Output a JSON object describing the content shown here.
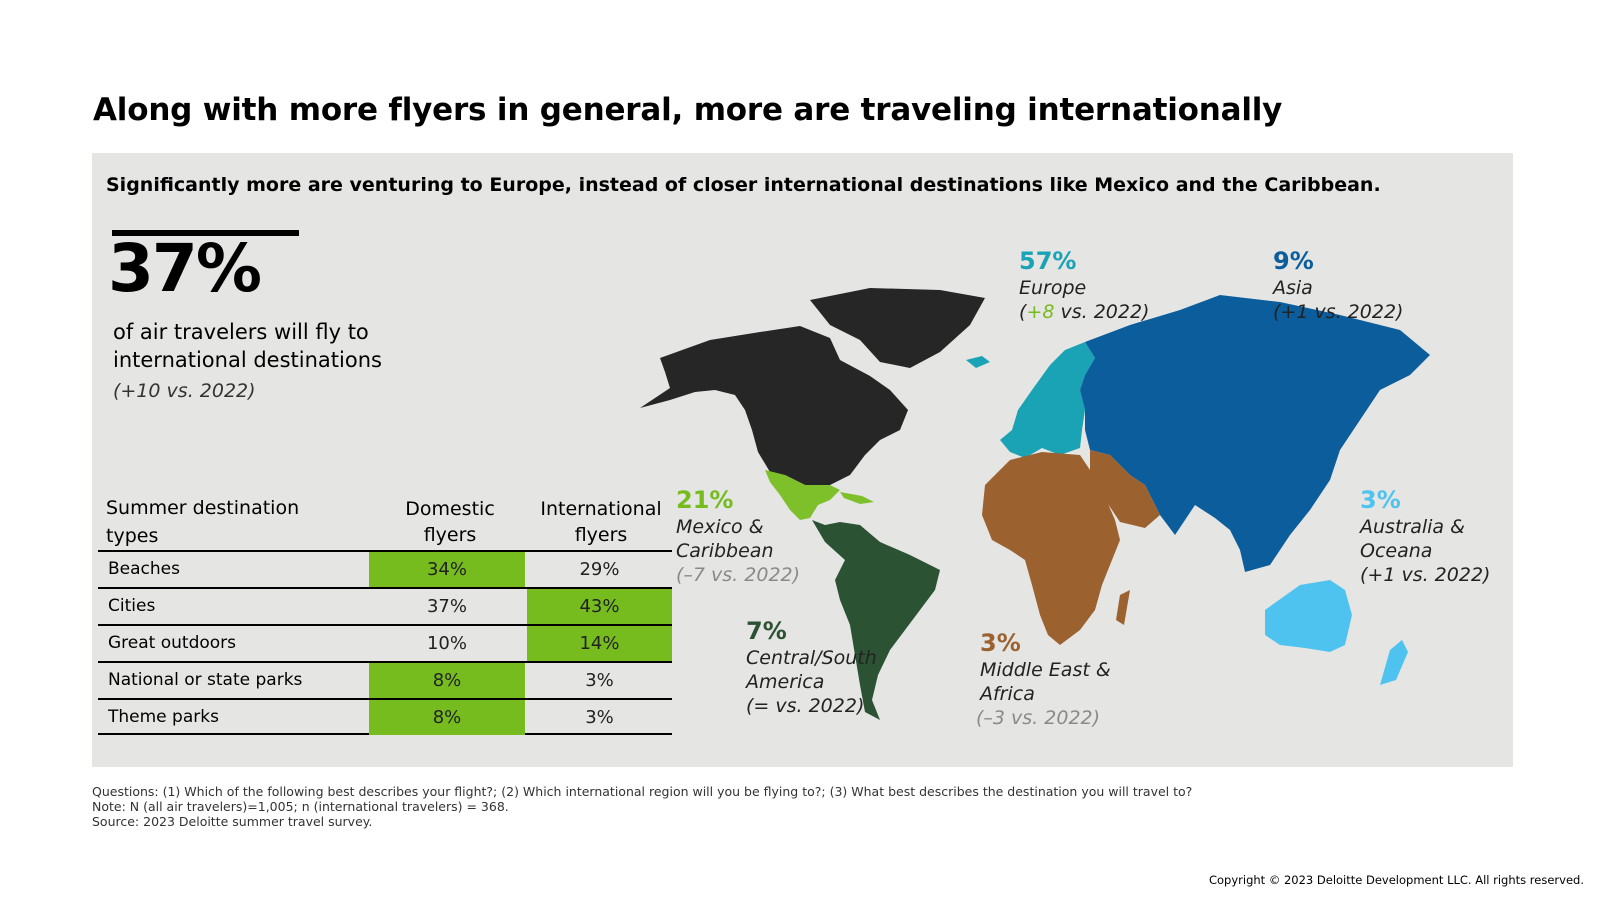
{
  "title": "Along with more flyers in general, more are traveling internationally",
  "subtitle": "Significantly more are venturing to Europe, instead of closer international destinations like Mexico and the Caribbean.",
  "headline_stat": {
    "value": "37%",
    "description": "of air travelers will fly to international destinations",
    "delta": "(+10 vs. 2022)"
  },
  "table": {
    "header_col1": "Summer destination types",
    "header_col2": "Domestic flyers",
    "header_col3": "International flyers",
    "rows": [
      {
        "label": "Beaches",
        "domestic": "34%",
        "international": "29%",
        "highlight": "domestic"
      },
      {
        "label": "Cities",
        "domestic": "37%",
        "international": "43%",
        "highlight": "international"
      },
      {
        "label": "Great outdoors",
        "domestic": "10%",
        "international": "14%",
        "highlight": "international"
      },
      {
        "label": "National or state parks",
        "domestic": "8%",
        "international": "3%",
        "highlight": "domestic"
      },
      {
        "label": "Theme parks",
        "domestic": "8%",
        "international": "3%",
        "highlight": "domestic"
      }
    ]
  },
  "regions": {
    "europe": {
      "pct": "57%",
      "name": "Europe",
      "delta_open": "(",
      "delta_num": "+8",
      "delta_rest": " vs. 2022)",
      "color": "#1aa3b5"
    },
    "asia": {
      "pct": "9%",
      "name": "Asia",
      "delta": "(+1 vs. 2022)",
      "color": "#0b5d9c"
    },
    "mexico": {
      "pct": "21%",
      "name_1": "Mexico &",
      "name_2": "Caribbean",
      "delta": "(–7 vs. 2022)",
      "color": "#7dc02a"
    },
    "australia": {
      "pct": "3%",
      "name_1": "Australia &",
      "name_2": "Oceana",
      "delta": "(+1 vs. 2022)",
      "color": "#4ec3f0"
    },
    "south_america": {
      "pct": "7%",
      "name_1": "Central/South",
      "name_2": "America",
      "delta": "(= vs. 2022)",
      "color": "#2c5234"
    },
    "mea": {
      "pct": "3%",
      "name_1": "Middle East &",
      "name_2": "Africa",
      "delta": "(–3 vs. 2022)",
      "color": "#9b6230"
    },
    "north_america_color": "#262626"
  },
  "footnotes": {
    "questions": "Questions: (1) Which of the following best describes your flight?; (2) Which international region will you be flying to?; (3) What best describes the destination you will travel to?",
    "note": "Note: N (all air travelers)=1,005; n (international travelers) = 368.",
    "source": "Source: 2023 Deloitte summer travel survey."
  },
  "copyright": "Copyright © 2023 Deloitte Development LLC. All rights reserved."
}
